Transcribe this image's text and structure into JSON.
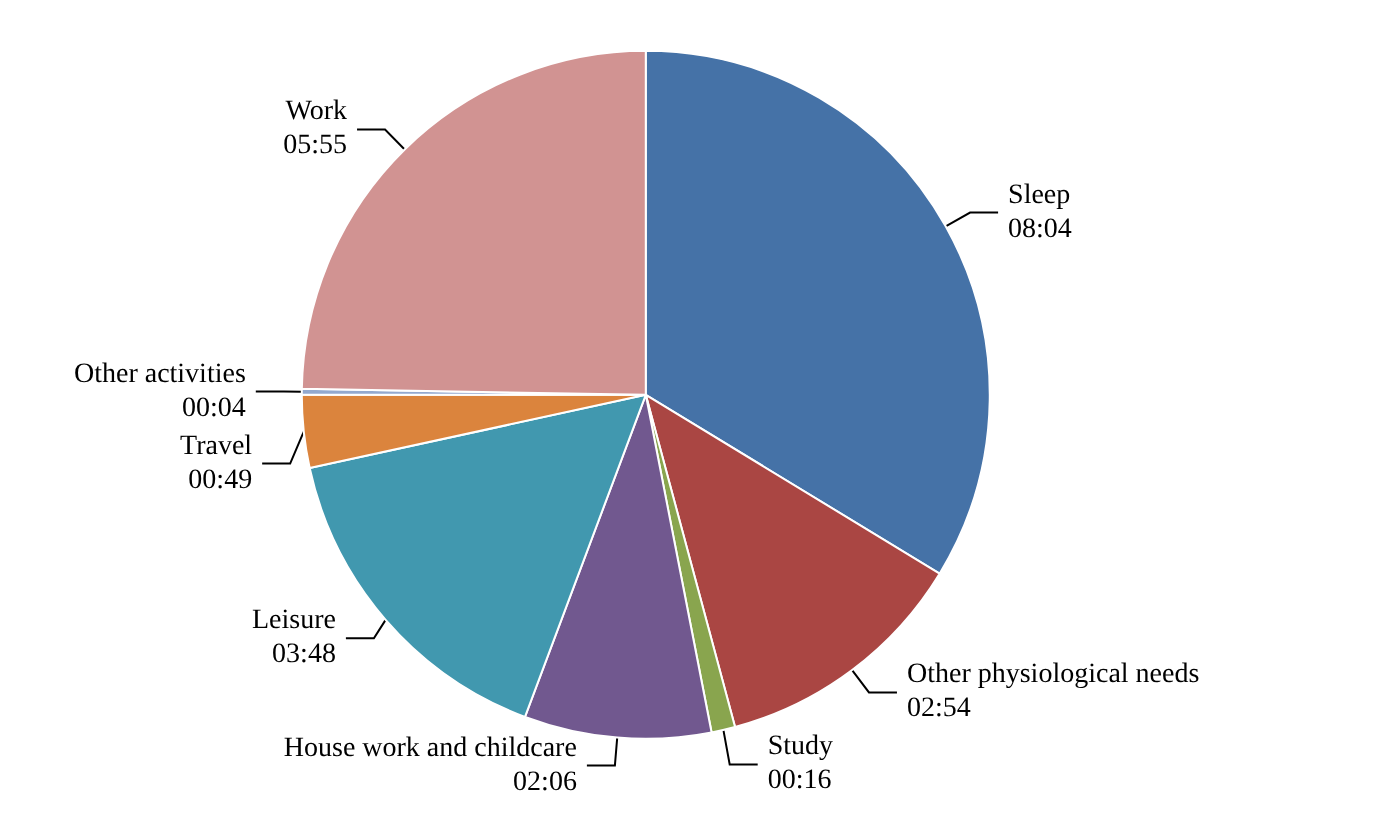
{
  "chart_data": {
    "type": "pie",
    "categories": [
      "Sleep",
      "Other physiological needs",
      "Study",
      "House work and childcare",
      "Leisure",
      "Travel",
      "Other activities",
      "Work"
    ],
    "values": [
      484,
      174,
      16,
      126,
      228,
      49,
      4,
      355
    ],
    "value_labels": [
      "08:04",
      "02:54",
      "00:16",
      "02:06",
      "03:48",
      "00:49",
      "00:04",
      "05:55"
    ],
    "colors": [
      "#4572a7",
      "#aa4643",
      "#89a54e",
      "#71588f",
      "#4198af",
      "#db843d",
      "#93a9cf",
      "#d19392"
    ]
  }
}
